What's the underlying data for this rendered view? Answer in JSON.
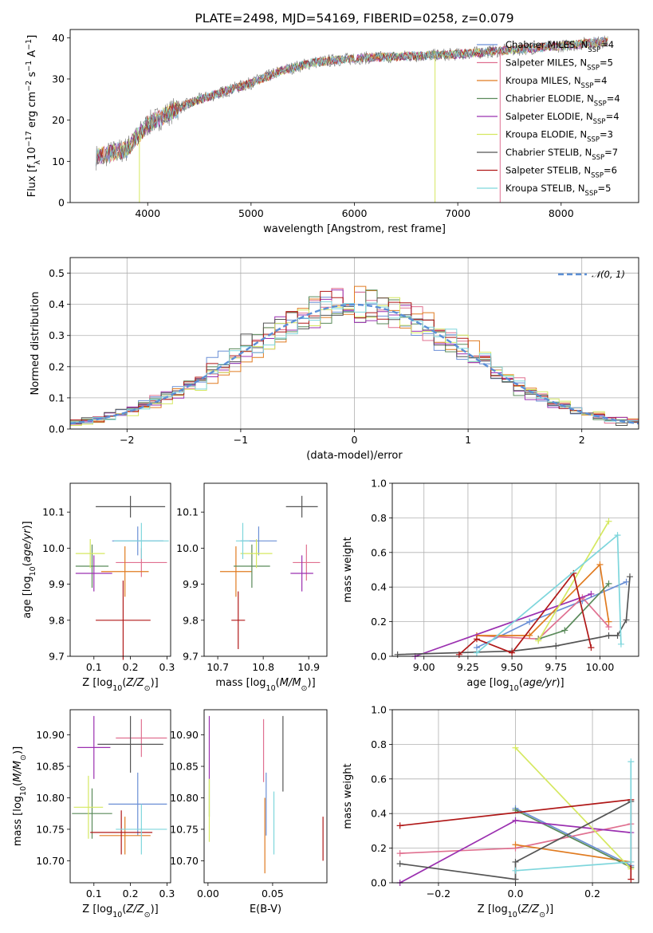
{
  "title": "PLATE=2498, MJD=54169, FIBERID=0258, z=0.079",
  "colors": {
    "Chabrier MILES": "#6b8fd6",
    "Salpeter MILES": "#e07090",
    "Kroupa MILES": "#e07b20",
    "Chabrier ELODIE": "#5a8a5a",
    "Salpeter ELODIE": "#9b30b0",
    "Kroupa ELODIE": "#d5e860",
    "Chabrier STELIB": "#555555",
    "Salpeter STELIB": "#b01818",
    "Kroupa STELIB": "#7ed6dc",
    "normal_line": "#5b8fd6"
  },
  "chart_data": [
    {
      "id": "spectrum",
      "type": "line",
      "title": "PLATE=2498, MJD=54169, FIBERID=0258, z=0.079",
      "xlabel": "wavelength [Angstrom, rest frame]",
      "ylabel": "Flux [f_λ 10^-17 erg cm^-2 s^-1 A^-1]",
      "xlim": [
        3250,
        8750
      ],
      "ylim": [
        0,
        42
      ],
      "xticks": [
        "4000",
        "5000",
        "6000",
        "7000",
        "8000"
      ],
      "yticks": [
        "0",
        "10",
        "20",
        "30",
        "40"
      ],
      "legend_position": "right",
      "grid": false,
      "legend": [
        {
          "name": "Chabrier MILES",
          "nssp": "4"
        },
        {
          "name": "Salpeter MILES",
          "nssp": "5"
        },
        {
          "name": "Kroupa MILES",
          "nssp": "4"
        },
        {
          "name": "Chabrier ELODIE",
          "nssp": "4"
        },
        {
          "name": "Salpeter ELODIE",
          "nssp": "4"
        },
        {
          "name": "Kroupa ELODIE",
          "nssp": "3"
        },
        {
          "name": "Chabrier STELIB",
          "nssp": "7"
        },
        {
          "name": "Salpeter STELIB",
          "nssp": "6"
        },
        {
          "name": "Kroupa STELIB",
          "nssp": "5"
        }
      ],
      "continuum_points": [
        [
          3500,
          11
        ],
        [
          3800,
          13
        ],
        [
          4000,
          19
        ],
        [
          4300,
          23
        ],
        [
          4500,
          25
        ],
        [
          5000,
          29
        ],
        [
          5300,
          32
        ],
        [
          5600,
          34
        ],
        [
          6000,
          35
        ],
        [
          6500,
          35.5
        ],
        [
          7000,
          36
        ],
        [
          7500,
          37
        ],
        [
          8000,
          38
        ],
        [
          8400,
          39
        ]
      ],
      "drops_to_zero": [
        {
          "series": "Kroupa ELODIE",
          "x": 6780
        },
        {
          "series": "Salpeter MILES",
          "x": 7410
        },
        {
          "series": "Kroupa ELODIE",
          "x": 3920
        }
      ]
    },
    {
      "id": "residuals",
      "type": "histogram",
      "xlabel": "(data-model)/error",
      "ylabel": "Normed distribution",
      "xlim": [
        -2.5,
        2.5
      ],
      "ylim": [
        0,
        0.55
      ],
      "xticks": [
        "−2",
        "−1",
        "0",
        "1",
        "2"
      ],
      "yticks": [
        "0.0",
        "0.1",
        "0.2",
        "0.3",
        "0.4",
        "0.5"
      ],
      "grid": true,
      "legend": [
        "𝒩(0, 1)"
      ],
      "legend_position": "top-right",
      "bin_width": 0.1
    },
    {
      "id": "age-vs-z",
      "type": "errorbar",
      "xlabel": "Z [log10(Z/Z☉)]",
      "ylabel": "age [log10(age/yr)]",
      "xlim": [
        0.035,
        0.31
      ],
      "ylim": [
        9.7,
        10.18
      ],
      "xticks": [
        "0.1",
        "0.2",
        "0.3"
      ],
      "yticks": [
        "9.7",
        "9.8",
        "9.9",
        "10.0",
        "10.1"
      ],
      "points": [
        {
          "series": "Chabrier MILES",
          "x": 0.22,
          "y": 10.02,
          "xerr": 0.07,
          "yerr": 0.04
        },
        {
          "series": "Salpeter MILES",
          "x": 0.23,
          "y": 9.96,
          "xerr": 0.07,
          "yerr": 0.04
        },
        {
          "series": "Kroupa MILES",
          "x": 0.185,
          "y": 9.935,
          "xerr": 0.065,
          "yerr": 0.07
        },
        {
          "series": "Chabrier ELODIE",
          "x": 0.095,
          "y": 9.95,
          "xerr": 0.045,
          "yerr": 0.06
        },
        {
          "series": "Salpeter ELODIE",
          "x": 0.1,
          "y": 9.93,
          "xerr": 0.05,
          "yerr": 0.05
        },
        {
          "series": "Kroupa ELODIE",
          "x": 0.09,
          "y": 9.985,
          "xerr": 0.04,
          "yerr": 0.04
        },
        {
          "series": "Chabrier STELIB",
          "x": 0.2,
          "y": 10.115,
          "xerr": 0.095,
          "yerr": 0.03
        },
        {
          "series": "Salpeter STELIB",
          "x": 0.18,
          "y": 9.8,
          "xerr": 0.075,
          "yerr": 0.11
        },
        {
          "series": "Kroupa STELIB",
          "x": 0.23,
          "y": 10.02,
          "xerr": 0.075,
          "yerr": 0.05
        }
      ]
    },
    {
      "id": "age-vs-mass",
      "type": "errorbar",
      "xlabel": "mass [log10(M/M☉)]",
      "ylabel": "",
      "xlim": [
        10.67,
        10.94
      ],
      "ylim": [
        9.7,
        10.18
      ],
      "xticks": [
        "10.7",
        "10.8",
        "10.9"
      ],
      "yticks": [
        "9.7",
        "9.8",
        "9.9",
        "10.0",
        "10.1"
      ],
      "points": [
        {
          "series": "Chabrier MILES",
          "x": 10.79,
          "y": 10.02,
          "xerr": 0.04,
          "yerr": 0.04
        },
        {
          "series": "Salpeter MILES",
          "x": 10.895,
          "y": 9.96,
          "xerr": 0.03,
          "yerr": 0.05
        },
        {
          "series": "Kroupa MILES",
          "x": 10.74,
          "y": 9.935,
          "xerr": 0.035,
          "yerr": 0.07
        },
        {
          "series": "Chabrier ELODIE",
          "x": 10.775,
          "y": 9.95,
          "xerr": 0.04,
          "yerr": 0.06
        },
        {
          "series": "Salpeter ELODIE",
          "x": 10.885,
          "y": 9.93,
          "xerr": 0.025,
          "yerr": 0.05
        },
        {
          "series": "Kroupa ELODIE",
          "x": 10.785,
          "y": 9.985,
          "xerr": 0.035,
          "yerr": 0.04
        },
        {
          "series": "Chabrier STELIB",
          "x": 10.885,
          "y": 10.115,
          "xerr": 0.035,
          "yerr": 0.03
        },
        {
          "series": "Salpeter STELIB",
          "x": 10.745,
          "y": 9.8,
          "xerr": 0.015,
          "yerr": 0.08
        },
        {
          "series": "Kroupa STELIB",
          "x": 10.755,
          "y": 10.02,
          "xerr": 0.015,
          "yerr": 0.05
        }
      ]
    },
    {
      "id": "mass-weight-vs-age",
      "type": "line",
      "xlabel": "age [log10(age/yr)]",
      "ylabel": "mass weight",
      "xlim": [
        8.82,
        10.22
      ],
      "ylim": [
        0,
        1.0
      ],
      "xticks": [
        "9.00",
        "9.25",
        "9.50",
        "9.75",
        "10.00"
      ],
      "yticks": [
        "0.0",
        "0.2",
        "0.4",
        "0.6",
        "0.8",
        "1.0"
      ],
      "grid": true,
      "series": [
        {
          "name": "Chabrier MILES",
          "points": [
            [
              9.3,
              0.05
            ],
            [
              9.6,
              0.2
            ],
            [
              9.9,
              0.32
            ],
            [
              10.15,
              0.43
            ]
          ]
        },
        {
          "name": "Salpeter MILES",
          "points": [
            [
              9.3,
              0.12
            ],
            [
              9.65,
              0.1
            ],
            [
              9.9,
              0.34
            ],
            [
              10.05,
              0.17
            ]
          ]
        },
        {
          "name": "Kroupa MILES",
          "points": [
            [
              9.3,
              0.12
            ],
            [
              9.6,
              0.12
            ],
            [
              10.0,
              0.53
            ],
            [
              10.05,
              0.2
            ]
          ]
        },
        {
          "name": "Chabrier ELODIE",
          "points": [
            [
              9.65,
              0.1
            ],
            [
              9.8,
              0.15
            ],
            [
              10.05,
              0.42
            ]
          ]
        },
        {
          "name": "Salpeter ELODIE",
          "points": [
            [
              8.95,
              0.0
            ],
            [
              9.95,
              0.36
            ]
          ]
        },
        {
          "name": "Kroupa ELODIE",
          "points": [
            [
              9.65,
              0.09
            ],
            [
              10.05,
              0.78
            ]
          ]
        },
        {
          "name": "Chabrier STELIB",
          "points": [
            [
              8.85,
              0.01
            ],
            [
              9.5,
              0.03
            ],
            [
              9.75,
              0.06
            ],
            [
              10.05,
              0.12
            ],
            [
              10.1,
              0.12
            ],
            [
              10.15,
              0.21
            ],
            [
              10.17,
              0.46
            ]
          ]
        },
        {
          "name": "Salpeter STELIB",
          "points": [
            [
              9.2,
              0.01
            ],
            [
              9.3,
              0.1
            ],
            [
              9.5,
              0.02
            ],
            [
              9.85,
              0.48
            ],
            [
              9.95,
              0.05
            ]
          ]
        },
        {
          "name": "Kroupa STELIB",
          "points": [
            [
              9.3,
              0.02
            ],
            [
              10.1,
              0.7
            ],
            [
              10.12,
              0.07
            ]
          ]
        }
      ]
    },
    {
      "id": "mass-vs-z",
      "type": "errorbar",
      "xlabel": "Z [log10(Z/Z☉)]",
      "ylabel": "mass [log10(M/M☉)]",
      "xlim": [
        0.035,
        0.31
      ],
      "ylim": [
        10.665,
        10.94
      ],
      "xticks": [
        "0.1",
        "0.2",
        "0.3"
      ],
      "yticks": [
        "10.70",
        "10.75",
        "10.80",
        "10.85",
        "10.90"
      ],
      "points": [
        {
          "series": "Chabrier MILES",
          "x": 0.22,
          "y": 10.79,
          "xerr": 0.08,
          "yerr": 0.05
        },
        {
          "series": "Salpeter MILES",
          "x": 0.23,
          "y": 10.895,
          "xerr": 0.07,
          "yerr": 0.03
        },
        {
          "series": "Kroupa MILES",
          "x": 0.185,
          "y": 10.74,
          "xerr": 0.07,
          "yerr": 0.03
        },
        {
          "series": "Chabrier ELODIE",
          "x": 0.095,
          "y": 10.775,
          "xerr": 0.055,
          "yerr": 0.04
        },
        {
          "series": "Salpeter ELODIE",
          "x": 0.1,
          "y": 10.88,
          "xerr": 0.045,
          "yerr": 0.05
        },
        {
          "series": "Kroupa ELODIE",
          "x": 0.085,
          "y": 10.785,
          "xerr": 0.04,
          "yerr": 0.05
        },
        {
          "series": "Chabrier STELIB",
          "x": 0.2,
          "y": 10.885,
          "xerr": 0.09,
          "yerr": 0.045
        },
        {
          "series": "Salpeter STELIB",
          "x": 0.175,
          "y": 10.745,
          "xerr": 0.085,
          "yerr": 0.035
        },
        {
          "series": "Kroupa STELIB",
          "x": 0.23,
          "y": 10.75,
          "xerr": 0.07,
          "yerr": 0.04
        }
      ]
    },
    {
      "id": "mass-vs-ebv",
      "type": "errorbar",
      "xlabel": "E(B-V)",
      "ylabel": "",
      "xlim": [
        -0.003,
        0.092
      ],
      "ylim": [
        10.665,
        10.94
      ],
      "xticks": [
        "0.00",
        "0.05"
      ],
      "yticks": [
        "10.70",
        "10.75",
        "10.80",
        "10.85",
        "10.90"
      ],
      "points": [
        {
          "series": "Chabrier MILES",
          "x": 0.045,
          "y": 10.79,
          "yerr": 0.05
        },
        {
          "series": "Salpeter MILES",
          "x": 0.043,
          "y": 10.875,
          "yerr": 0.05
        },
        {
          "series": "Kroupa MILES",
          "x": 0.044,
          "y": 10.74,
          "yerr": 0.06
        },
        {
          "series": "Chabrier ELODIE",
          "x": 0.001,
          "y": 10.8,
          "yerr": 0.03
        },
        {
          "series": "Salpeter ELODIE",
          "x": 0.001,
          "y": 10.88,
          "yerr": 0.05
        },
        {
          "series": "Kroupa ELODIE",
          "x": 0.001,
          "y": 10.78,
          "yerr": 0.05
        },
        {
          "series": "Chabrier STELIB",
          "x": 0.058,
          "y": 10.87,
          "yerr": 0.06
        },
        {
          "series": "Salpeter STELIB",
          "x": 0.089,
          "y": 10.735,
          "yerr": 0.035
        },
        {
          "series": "Kroupa STELIB",
          "x": 0.051,
          "y": 10.76,
          "yerr": 0.05
        }
      ]
    },
    {
      "id": "mass-weight-vs-z",
      "type": "line",
      "xlabel": "Z [log10(Z/Z☉)]",
      "ylabel": "mass weight",
      "xlim": [
        -0.32,
        0.32
      ],
      "ylim": [
        0,
        1.0
      ],
      "xticks": [
        "−0.2",
        "0.0",
        "0.2"
      ],
      "yticks": [
        "0.0",
        "0.2",
        "0.4",
        "0.6",
        "0.8",
        "1.0"
      ],
      "grid": true,
      "series": [
        {
          "name": "Chabrier MILES",
          "points": [
            [
              0.0,
              0.43
            ],
            [
              0.3,
              0.1
            ]
          ]
        },
        {
          "name": "Salpeter MILES",
          "points": [
            [
              -0.3,
              0.17
            ],
            [
              0.0,
              0.2
            ],
            [
              0.3,
              0.34
            ]
          ]
        },
        {
          "name": "Kroupa MILES",
          "points": [
            [
              0.0,
              0.22
            ],
            [
              0.3,
              0.12
            ]
          ]
        },
        {
          "name": "Chabrier ELODIE",
          "points": [
            [
              0.0,
              0.42
            ],
            [
              0.3,
              0.09
            ]
          ]
        },
        {
          "name": "Salpeter ELODIE",
          "points": [
            [
              -0.3,
              0.0
            ],
            [
              0.0,
              0.36
            ],
            [
              0.3,
              0.29
            ]
          ]
        },
        {
          "name": "Kroupa ELODIE",
          "points": [
            [
              0.0,
              0.78
            ],
            [
              0.3,
              0.08
            ]
          ]
        },
        {
          "name": "Chabrier STELIB",
          "points": [
            [
              -0.3,
              0.11
            ],
            [
              0.0,
              0.02
            ],
            [
              0.0,
              0.12
            ],
            [
              0.3,
              0.47
            ]
          ]
        },
        {
          "name": "Salpeter STELIB",
          "points": [
            [
              -0.3,
              0.33
            ],
            [
              0.3,
              0.48
            ],
            [
              0.3,
              0.02
            ]
          ]
        },
        {
          "name": "Kroupa STELIB",
          "points": [
            [
              0.0,
              0.07
            ],
            [
              0.3,
              0.12
            ],
            [
              0.3,
              0.7
            ]
          ]
        }
      ]
    }
  ]
}
